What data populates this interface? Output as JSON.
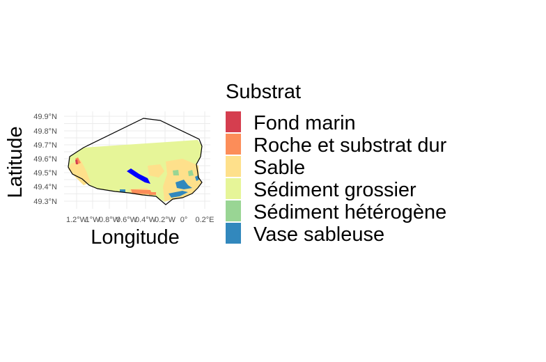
{
  "chart_data": {
    "type": "map",
    "xlabel": "Longitude",
    "ylabel": "Latitude",
    "x_ticks": [
      "1.2°W",
      "1°W",
      "0.8°W",
      "0.6°W",
      "0.4°W",
      "0.2°W",
      "0°",
      "0.2°E"
    ],
    "y_ticks": [
      "49.9°N",
      "49.8°N",
      "49.7°N",
      "49.6°N",
      "49.5°N",
      "49.4°N",
      "49.3°N"
    ],
    "xlim": [
      -1.25,
      0.25
    ],
    "ylim": [
      49.25,
      49.92
    ],
    "grid": true,
    "legend": {
      "title": "Substrat",
      "placement": "right",
      "entries": [
        {
          "label": "Fond marin",
          "color": "#d53e4f"
        },
        {
          "label": "Roche et substrat dur",
          "color": "#fc8d59"
        },
        {
          "label": "Sable",
          "color": "#fee08b"
        },
        {
          "label": "Sédiment grossier",
          "color": "#e6f598"
        },
        {
          "label": "Sédiment hétérogène",
          "color": "#99d594"
        },
        {
          "label": "Vase sableuse",
          "color": "#3288bd"
        }
      ]
    },
    "highlight_color": "#0000ff"
  }
}
